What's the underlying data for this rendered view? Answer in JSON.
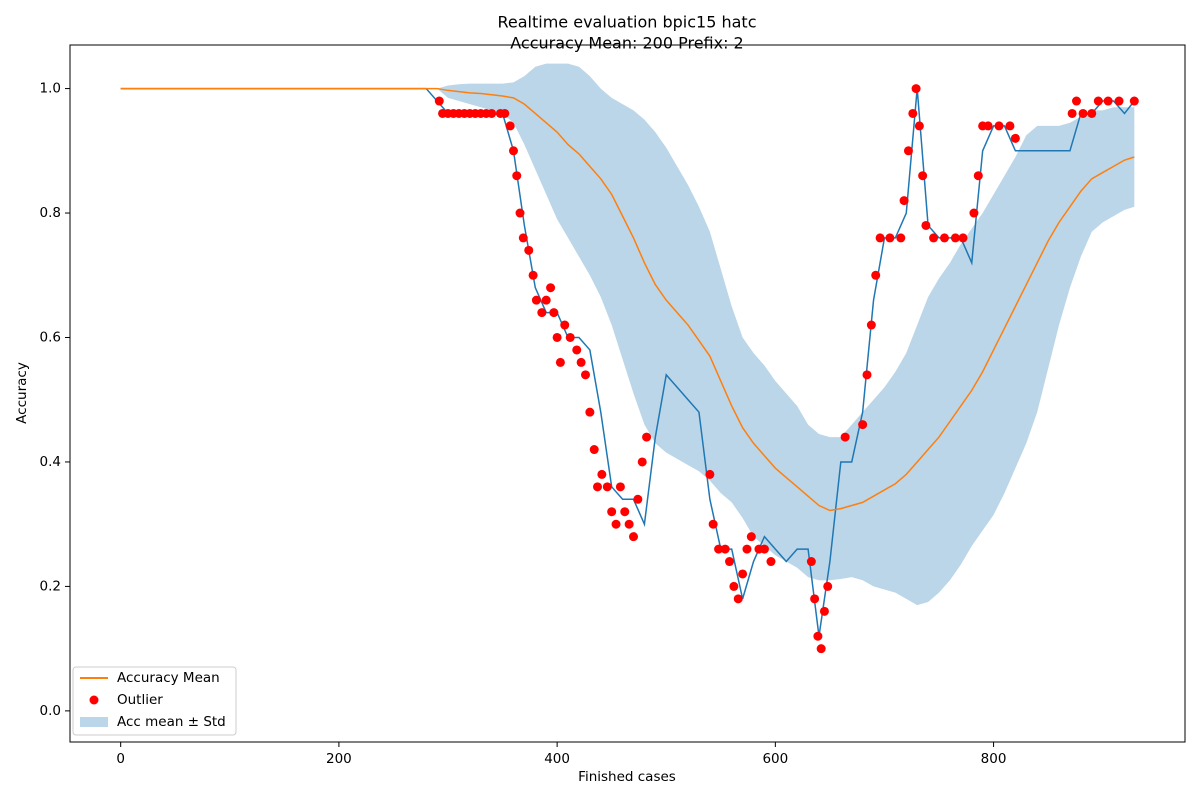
{
  "chart_data": {
    "type": "line",
    "title": "Realtime evaluation bpic15 hatc",
    "subtitle": "Accuracy Mean: 200 Prefix: 2",
    "xlabel": "Finished cases",
    "ylabel": "Accuracy",
    "xlim": [
      -46.45,
      975.45
    ],
    "ylim": [
      -0.05,
      1.07
    ],
    "xticks": [
      0,
      200,
      400,
      600,
      800
    ],
    "yticks": [
      {
        "value": 0,
        "label": "0.0"
      },
      {
        "value": 0.2,
        "label": "0.2"
      },
      {
        "value": 0.4,
        "label": "0.4"
      },
      {
        "value": 0.6,
        "label": "0.6"
      },
      {
        "value": 0.8,
        "label": "0.8"
      },
      {
        "value": 1,
        "label": "1.0"
      }
    ],
    "legend": "lower left",
    "x": [
      0,
      10,
      20,
      30,
      40,
      50,
      60,
      70,
      80,
      90,
      100,
      110,
      120,
      130,
      140,
      150,
      160,
      170,
      180,
      190,
      200,
      210,
      220,
      230,
      240,
      250,
      260,
      270,
      280,
      290,
      300,
      310,
      320,
      330,
      340,
      350,
      360,
      370,
      380,
      390,
      400,
      410,
      420,
      430,
      440,
      450,
      460,
      470,
      480,
      490,
      500,
      510,
      520,
      530,
      540,
      550,
      560,
      570,
      580,
      590,
      600,
      610,
      620,
      630,
      640,
      650,
      660,
      670,
      680,
      690,
      700,
      710,
      720,
      730,
      740,
      750,
      760,
      770,
      780,
      790,
      800,
      810,
      820,
      830,
      840,
      850,
      860,
      870,
      880,
      890,
      900,
      910,
      920,
      929
    ],
    "series": [
      {
        "color": "#1f77b4",
        "values": [
          1,
          1,
          1,
          1,
          1,
          1,
          1,
          1,
          1,
          1,
          1,
          1,
          1,
          1,
          1,
          1,
          1,
          1,
          1,
          1,
          1,
          1,
          1,
          1,
          1,
          1,
          1,
          1,
          1,
          0.98,
          0.96,
          0.96,
          0.96,
          0.96,
          0.96,
          0.96,
          0.9,
          0.78,
          0.68,
          0.64,
          0.64,
          0.6,
          0.6,
          0.58,
          0.48,
          0.36,
          0.34,
          0.34,
          0.3,
          0.44,
          0.54,
          0.52,
          0.5,
          0.48,
          0.34,
          0.26,
          0.26,
          0.18,
          0.24,
          0.28,
          0.26,
          0.24,
          0.26,
          0.26,
          0.12,
          0.24,
          0.4,
          0.4,
          0.48,
          0.66,
          0.76,
          0.76,
          0.8,
          1.0,
          0.78,
          0.76,
          0.76,
          0.76,
          0.72,
          0.9,
          0.94,
          0.94,
          0.9,
          0.9,
          0.9,
          0.9,
          0.9,
          0.9,
          0.96,
          0.96,
          0.98,
          0.98,
          0.96,
          0.98
        ]
      },
      {
        "name": "Accuracy Mean",
        "color": "#ff7f0e",
        "values": [
          1,
          1,
          1,
          1,
          1,
          1,
          1,
          1,
          1,
          1,
          1,
          1,
          1,
          1,
          1,
          1,
          1,
          1,
          1,
          1,
          1,
          1,
          1,
          1,
          1,
          1,
          1,
          1,
          1,
          1,
          0.997,
          0.995,
          0.993,
          0.992,
          0.99,
          0.988,
          0.985,
          0.975,
          0.96,
          0.945,
          0.93,
          0.91,
          0.895,
          0.875,
          0.855,
          0.83,
          0.795,
          0.76,
          0.72,
          0.685,
          0.66,
          0.64,
          0.62,
          0.595,
          0.57,
          0.53,
          0.49,
          0.455,
          0.43,
          0.41,
          0.39,
          0.375,
          0.36,
          0.345,
          0.33,
          0.322,
          0.325,
          0.33,
          0.335,
          0.345,
          0.355,
          0.365,
          0.38,
          0.4,
          0.42,
          0.44,
          0.465,
          0.49,
          0.515,
          0.545,
          0.58,
          0.615,
          0.65,
          0.685,
          0.72,
          0.755,
          0.785,
          0.81,
          0.835,
          0.855,
          0.865,
          0.875,
          0.885,
          0.89
        ]
      }
    ],
    "outliers": {
      "name": "Outlier",
      "color": "#ff0000",
      "x": [
        292,
        295,
        300,
        305,
        310,
        315,
        320,
        325,
        330,
        335,
        340,
        348,
        352,
        357,
        360,
        363,
        366,
        369,
        374,
        378,
        381,
        386,
        390,
        394,
        397,
        400,
        403,
        407,
        412,
        418,
        422,
        426,
        430,
        434,
        437,
        441,
        446,
        450,
        454,
        458,
        462,
        466,
        470,
        474,
        478,
        482,
        540,
        543,
        548,
        554,
        558,
        562,
        566,
        570,
        574,
        578,
        585,
        590,
        596,
        633,
        636,
        639,
        642,
        645,
        648,
        664,
        680,
        684,
        688,
        692,
        696,
        705,
        715,
        718,
        722,
        726,
        729,
        732,
        735,
        738,
        745,
        755,
        765,
        772,
        782,
        786,
        790,
        795,
        805,
        815,
        820,
        872,
        876,
        882,
        890,
        896,
        905,
        915,
        929
      ],
      "values": [
        0.98,
        0.96,
        0.96,
        0.96,
        0.96,
        0.96,
        0.96,
        0.96,
        0.96,
        0.96,
        0.96,
        0.96,
        0.96,
        0.94,
        0.9,
        0.86,
        0.8,
        0.76,
        0.74,
        0.7,
        0.66,
        0.64,
        0.66,
        0.68,
        0.64,
        0.6,
        0.56,
        0.62,
        0.6,
        0.58,
        0.56,
        0.54,
        0.48,
        0.42,
        0.36,
        0.38,
        0.36,
        0.32,
        0.3,
        0.36,
        0.32,
        0.3,
        0.28,
        0.34,
        0.4,
        0.44,
        0.38,
        0.3,
        0.26,
        0.26,
        0.24,
        0.2,
        0.18,
        0.22,
        0.26,
        0.28,
        0.26,
        0.26,
        0.24,
        0.24,
        0.18,
        0.12,
        0.1,
        0.16,
        0.2,
        0.44,
        0.46,
        0.54,
        0.62,
        0.7,
        0.76,
        0.76,
        0.76,
        0.82,
        0.9,
        0.96,
        1.0,
        0.94,
        0.86,
        0.78,
        0.76,
        0.76,
        0.76,
        0.76,
        0.8,
        0.86,
        0.94,
        0.94,
        0.94,
        0.94,
        0.92,
        0.96,
        0.98,
        0.96,
        0.96,
        0.98,
        0.98,
        0.98,
        0.98
      ]
    },
    "band": {
      "name": "Acc mean ± Std",
      "color": "#1f77b4",
      "opacity": 0.3,
      "lower": [
        1,
        1,
        1,
        1,
        1,
        1,
        1,
        1,
        1,
        1,
        1,
        1,
        1,
        1,
        1,
        1,
        1,
        1,
        1,
        1,
        1,
        1,
        1,
        1,
        1,
        1,
        1,
        1,
        1,
        1,
        0.985,
        0.98,
        0.975,
        0.97,
        0.965,
        0.96,
        0.945,
        0.91,
        0.87,
        0.83,
        0.79,
        0.76,
        0.73,
        0.7,
        0.665,
        0.62,
        0.565,
        0.51,
        0.46,
        0.43,
        0.415,
        0.405,
        0.395,
        0.385,
        0.37,
        0.35,
        0.335,
        0.31,
        0.28,
        0.265,
        0.25,
        0.24,
        0.23,
        0.215,
        0.21,
        0.21,
        0.212,
        0.215,
        0.21,
        0.2,
        0.195,
        0.19,
        0.18,
        0.17,
        0.175,
        0.19,
        0.21,
        0.235,
        0.265,
        0.29,
        0.315,
        0.35,
        0.39,
        0.43,
        0.48,
        0.55,
        0.62,
        0.68,
        0.73,
        0.77,
        0.785,
        0.795,
        0.805,
        0.81
      ],
      "upper": [
        1,
        1,
        1,
        1,
        1,
        1,
        1,
        1,
        1,
        1,
        1,
        1,
        1,
        1,
        1,
        1,
        1,
        1,
        1,
        1,
        1,
        1,
        1,
        1,
        1,
        1,
        1,
        1,
        1,
        1,
        1.005,
        1.007,
        1.008,
        1.008,
        1.008,
        1.008,
        1.01,
        1.02,
        1.035,
        1.04,
        1.04,
        1.04,
        1.035,
        1.02,
        1.0,
        0.985,
        0.975,
        0.965,
        0.95,
        0.93,
        0.905,
        0.875,
        0.845,
        0.81,
        0.77,
        0.71,
        0.65,
        0.6,
        0.575,
        0.555,
        0.53,
        0.51,
        0.49,
        0.46,
        0.445,
        0.44,
        0.44,
        0.46,
        0.48,
        0.5,
        0.52,
        0.545,
        0.575,
        0.62,
        0.665,
        0.695,
        0.72,
        0.75,
        0.775,
        0.8,
        0.83,
        0.86,
        0.89,
        0.925,
        0.94,
        0.94,
        0.94,
        0.945,
        0.955,
        0.965,
        0.965,
        0.97,
        0.97,
        0.97
      ]
    }
  }
}
